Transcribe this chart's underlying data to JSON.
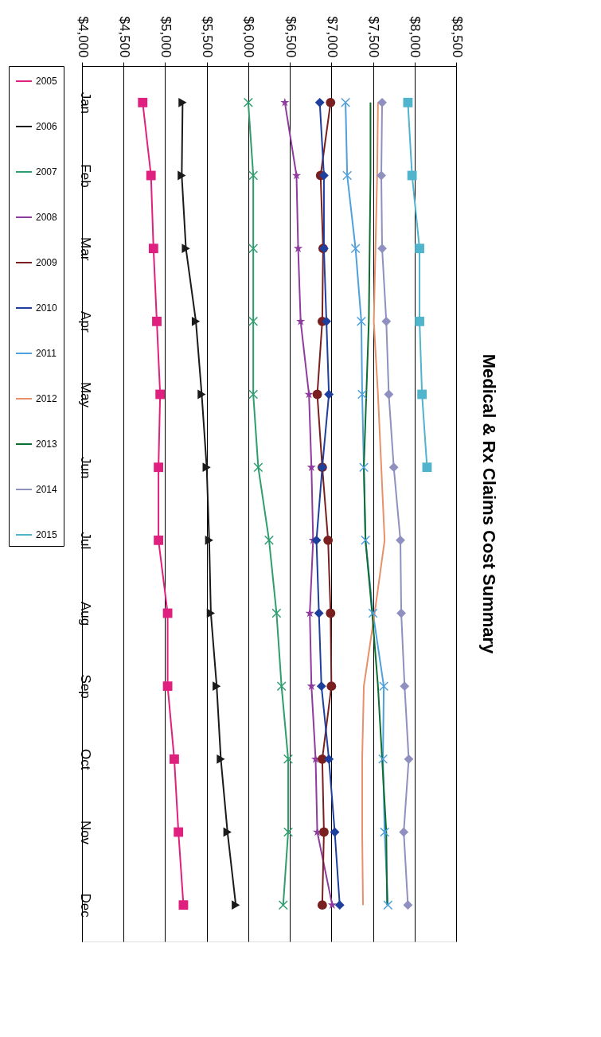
{
  "chart_data": {
    "type": "line",
    "title": "Medical & Rx Claims Cost Summary",
    "orientation": "horizontal",
    "categories": [
      "Jan",
      "Feb",
      "Mar",
      "Apr",
      "May",
      "Jun",
      "Jul",
      "Aug",
      "Sep",
      "Oct",
      "Nov",
      "Dec"
    ],
    "xlim": [
      4000,
      8500
    ],
    "xticks": [
      {
        "value": 4000,
        "label": "$4,000"
      },
      {
        "value": 4500,
        "label": "$4,500"
      },
      {
        "value": 5000,
        "label": "$5,000"
      },
      {
        "value": 5500,
        "label": "$5,500"
      },
      {
        "value": 6000,
        "label": "$6,000"
      },
      {
        "value": 6500,
        "label": "$6,500"
      },
      {
        "value": 7000,
        "label": "$7,000"
      },
      {
        "value": 7500,
        "label": "$7,500"
      },
      {
        "value": 8000,
        "label": "$8,000"
      },
      {
        "value": 8500,
        "label": "$8,500"
      }
    ],
    "grid": "x",
    "legend": "left",
    "series": [
      {
        "name": "2005",
        "color": "#e0207f",
        "marker": "square",
        "values": [
          4730,
          4830,
          4860,
          4900,
          4940,
          4920,
          4920,
          5030,
          5030,
          5110,
          5160,
          5220
        ]
      },
      {
        "name": "2006",
        "color": "#1a1a1a",
        "marker": "triangle",
        "values": [
          5210,
          5200,
          5250,
          5370,
          5440,
          5500,
          5530,
          5550,
          5620,
          5670,
          5750,
          5850
        ]
      },
      {
        "name": "2007",
        "color": "#2e9e6e",
        "marker": "cross",
        "values": [
          6000,
          6060,
          6060,
          6060,
          6060,
          6120,
          6250,
          6340,
          6400,
          6480,
          6480,
          6420
        ]
      },
      {
        "name": "2008",
        "color": "#8e3c9e",
        "marker": "star",
        "values": [
          6440,
          6580,
          6600,
          6630,
          6730,
          6760,
          6780,
          6740,
          6760,
          6810,
          6830,
          7010
        ]
      },
      {
        "name": "2009",
        "color": "#7a1f1f",
        "marker": "circle",
        "values": [
          6990,
          6870,
          6900,
          6890,
          6830,
          6890,
          6960,
          6990,
          7000,
          6890,
          6910,
          6890
        ]
      },
      {
        "name": "2010",
        "color": "#1f3f9e",
        "marker": "diamond",
        "values": [
          6860,
          6910,
          6910,
          6940,
          6970,
          6890,
          6820,
          6850,
          6880,
          6970,
          7040,
          7100
        ]
      },
      {
        "name": "2011",
        "color": "#4fa0dc",
        "marker": "cross",
        "values": [
          7170,
          7190,
          7290,
          7360,
          7370,
          7390,
          7410,
          7500,
          7630,
          7620,
          7640,
          7680
        ]
      },
      {
        "name": "2012",
        "color": "#e8906a",
        "marker": "none",
        "values": [
          7560,
          7550,
          7530,
          7510,
          7560,
          7600,
          7640,
          7520,
          7390,
          7370,
          7370,
          7380
        ]
      },
      {
        "name": "2013",
        "color": "#0e6e30",
        "marker": "none",
        "values": [
          7470,
          7470,
          7460,
          7450,
          7420,
          7390,
          7410,
          7490,
          7560,
          7610,
          7660,
          7670
        ]
      },
      {
        "name": "2014",
        "color": "#9090c0",
        "marker": "diamond",
        "values": [
          7610,
          7600,
          7610,
          7660,
          7690,
          7750,
          7830,
          7840,
          7880,
          7930,
          7870,
          7920
        ]
      },
      {
        "name": "2015",
        "color": "#4fb4cc",
        "marker": "square",
        "values": [
          7920,
          7970,
          8060,
          8060,
          8090,
          8150,
          null,
          null,
          null,
          null,
          null,
          null
        ]
      }
    ]
  }
}
